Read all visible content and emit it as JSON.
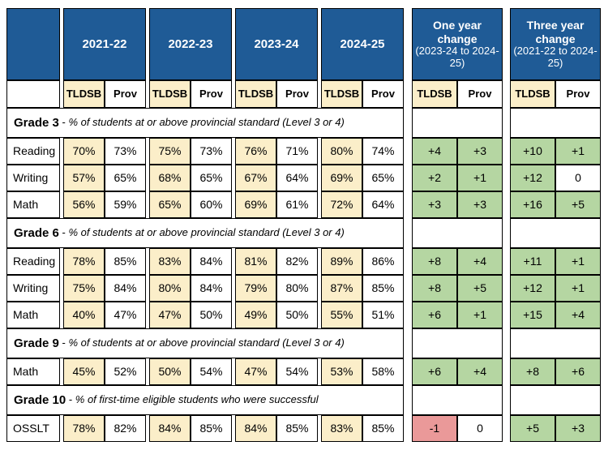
{
  "palette": {
    "header_blue": "#1f5b96",
    "tldsb_tan": "#fbeec9",
    "positive_green": "#b5d6a2",
    "negative_red": "#ea9999",
    "zero_white": "#ffffff",
    "border_black": "#000000"
  },
  "chart_data": {
    "type": "table",
    "years": [
      "2021-22",
      "2022-23",
      "2023-24",
      "2024-25"
    ],
    "col_headers": {
      "board": "TLDSB",
      "prov": "Prov"
    },
    "section_separator": " - ",
    "sections": [
      {
        "grade": "Grade 3",
        "description": "% of students at or above provincial standard (Level 3 or 4)",
        "rows": [
          {
            "label": "Reading",
            "values": [
              "70%",
              "73%",
              "75%",
              "73%",
              "76%",
              "71%",
              "80%",
              "74%"
            ],
            "one_year": [
              "+4",
              "+3"
            ],
            "three_year": [
              "+10",
              "+1"
            ]
          },
          {
            "label": "Writing",
            "values": [
              "57%",
              "65%",
              "68%",
              "65%",
              "67%",
              "64%",
              "69%",
              "65%"
            ],
            "one_year": [
              "+2",
              "+1"
            ],
            "three_year": [
              "+12",
              "0"
            ]
          },
          {
            "label": "Math",
            "values": [
              "56%",
              "59%",
              "65%",
              "60%",
              "69%",
              "61%",
              "72%",
              "64%"
            ],
            "one_year": [
              "+3",
              "+3"
            ],
            "three_year": [
              "+16",
              "+5"
            ]
          }
        ]
      },
      {
        "grade": "Grade 6",
        "description": "% of students at or above provincial standard (Level 3 or 4)",
        "rows": [
          {
            "label": "Reading",
            "values": [
              "78%",
              "85%",
              "83%",
              "84%",
              "81%",
              "82%",
              "89%",
              "86%"
            ],
            "one_year": [
              "+8",
              "+4"
            ],
            "three_year": [
              "+11",
              "+1"
            ]
          },
          {
            "label": "Writing",
            "values": [
              "75%",
              "84%",
              "80%",
              "84%",
              "79%",
              "80%",
              "87%",
              "85%"
            ],
            "one_year": [
              "+8",
              "+5"
            ],
            "three_year": [
              "+12",
              "+1"
            ]
          },
          {
            "label": "Math",
            "values": [
              "40%",
              "47%",
              "47%",
              "50%",
              "49%",
              "50%",
              "55%",
              "51%"
            ],
            "one_year": [
              "+6",
              "+1"
            ],
            "three_year": [
              "+15",
              "+4"
            ]
          }
        ]
      },
      {
        "grade": "Grade 9",
        "description": "% of students at or above provincial standard (Level 3 or 4)",
        "rows": [
          {
            "label": "Math",
            "values": [
              "45%",
              "52%",
              "50%",
              "54%",
              "47%",
              "54%",
              "53%",
              "58%"
            ],
            "one_year": [
              "+6",
              "+4"
            ],
            "three_year": [
              "+8",
              "+6"
            ]
          }
        ]
      },
      {
        "grade": "Grade 10",
        "description": "% of first-time eligible students who were successful",
        "rows": [
          {
            "label": "OSSLT",
            "values": [
              "78%",
              "82%",
              "84%",
              "85%",
              "84%",
              "85%",
              "83%",
              "85%"
            ],
            "one_year": [
              "-1",
              "0"
            ],
            "three_year": [
              "+5",
              "+3"
            ]
          }
        ]
      }
    ],
    "change_columns": [
      {
        "title": "One year change",
        "subtitle": "(2023-24 to 2024-25)",
        "key": "one_year"
      },
      {
        "title": "Three year change",
        "subtitle": "(2021-22 to 2024-25)",
        "key": "three_year"
      }
    ]
  }
}
